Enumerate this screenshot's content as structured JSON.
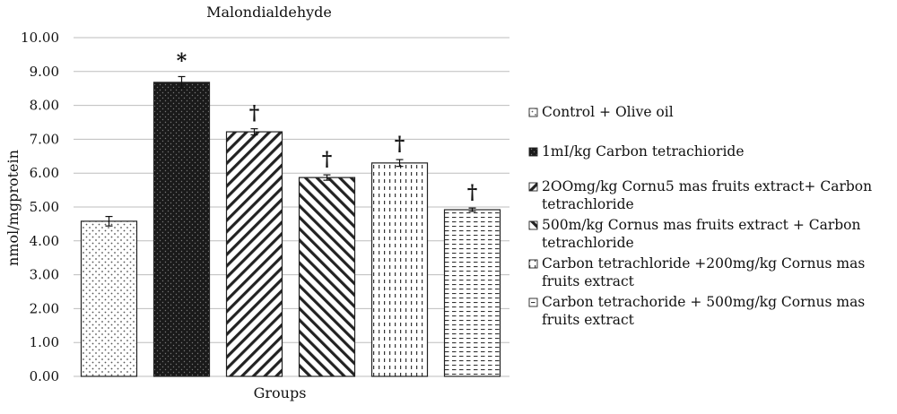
{
  "chart_data": {
    "type": "bar",
    "title": "Malondialdehyde",
    "xlabel": "Groups",
    "ylabel": "nmol/mgprotein",
    "ylim": [
      0,
      10
    ],
    "ytick_step": 1,
    "ytick_labels": [
      "0.00",
      "1.00",
      "2.00",
      "3.00",
      "4.00",
      "5.00",
      "6.00",
      "7.00",
      "8.00",
      "9.00",
      "10.00"
    ],
    "grid": true,
    "legend_position": "right",
    "series": [
      {
        "name": "Control + Olive oil",
        "value": 4.58,
        "error": 0.14,
        "marker": "",
        "pattern": "dots"
      },
      {
        "name": "1mI/kg Carbon tetrachioride",
        "value": 8.68,
        "error": 0.17,
        "marker": "*",
        "pattern": "dark"
      },
      {
        "name": "2OOmg/kg Cornu5 mas fruits extract+ Carbon tetrachloride",
        "legend_lines": [
          "2OOmg/kg Cornu5 mas fruits extract+ Carbon",
          "tetrachloride"
        ],
        "value": 7.22,
        "error": 0.09,
        "marker": "†",
        "pattern": "diag-down"
      },
      {
        "name": "500m/kg Cornus mas fruits extract + Carbon tetrachloride",
        "legend_lines": [
          "500m/kg Cornus mas fruits extract + Carbon",
          "tetrachloride"
        ],
        "value": 5.87,
        "error": 0.08,
        "marker": "†",
        "pattern": "diag-up"
      },
      {
        "name": "Carbon tetrachloride +200mg/kg Cornus mas fruits extract",
        "legend_lines": [
          "Carbon tetrachloride +200mg/kg Cornus mas",
          "fruits extract"
        ],
        "value": 6.3,
        "error": 0.1,
        "marker": "†",
        "pattern": "vdash"
      },
      {
        "name": "Carbon tetrachoride + 500mg/kg Cornus mas fruits extract",
        "legend_lines": [
          "Carbon tetrachoride + 500mg/kg Cornus mas",
          "fruits extract"
        ],
        "value": 4.92,
        "error": 0.05,
        "marker": "†",
        "pattern": "hdash"
      }
    ]
  },
  "colors": {
    "grid": "#bdbdbd",
    "bar_outline": "#222222",
    "dark_fill": "#1a1a1a",
    "pattern_ink": "#333333"
  }
}
